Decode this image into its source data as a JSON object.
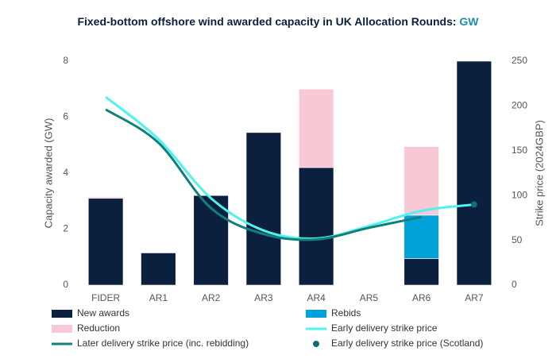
{
  "chart_data": {
    "type": "bar",
    "title": "Fixed-bottom offshore wind awarded capacity in UK Allocation Rounds:",
    "title_unit": "GW",
    "y_label": "Capacity awarded (GW)",
    "y2_label": "Strike price (2024GBP)",
    "categories": [
      "FIDER",
      "AR1",
      "AR2",
      "AR3",
      "AR4",
      "AR5",
      "AR6",
      "AR7"
    ],
    "ylim": [
      0,
      8
    ],
    "yticks": [
      0,
      2,
      4,
      6,
      8
    ],
    "y2lim": [
      0,
      250
    ],
    "y2ticks": [
      0,
      50,
      100,
      150,
      200,
      250
    ],
    "series": [
      {
        "name": "New awards",
        "type": "bar",
        "color": "#0b1f3f",
        "values": [
          3.1,
          1.15,
          3.2,
          5.45,
          4.2,
          0,
          0.95,
          8.0
        ]
      },
      {
        "name": "Rebids",
        "type": "bar",
        "color": "#00a3d9",
        "values": [
          0,
          0,
          0,
          0,
          0,
          0,
          1.55,
          0
        ]
      },
      {
        "name": "Reduction",
        "type": "bar",
        "color": "#f8c8d4",
        "values": [
          0.05,
          0,
          0,
          0,
          2.8,
          0,
          2.45,
          0
        ]
      },
      {
        "name": "Early delivery strike price",
        "type": "line",
        "axis": "y2",
        "color": "#4ff3ee",
        "values": [
          210,
          163,
          97,
          61,
          52,
          66,
          83,
          90
        ]
      },
      {
        "name": "Later delivery strike price (inc. rebidding)",
        "type": "line",
        "axis": "y2",
        "color": "#12807a",
        "values": [
          196,
          159,
          86,
          57,
          51,
          64,
          76,
          null
        ]
      },
      {
        "name": "Early delivery strike price (Scotland)",
        "type": "scatter",
        "axis": "y2",
        "color": "#0d6f7a",
        "values": [
          null,
          null,
          null,
          null,
          null,
          null,
          null,
          90
        ]
      }
    ]
  }
}
